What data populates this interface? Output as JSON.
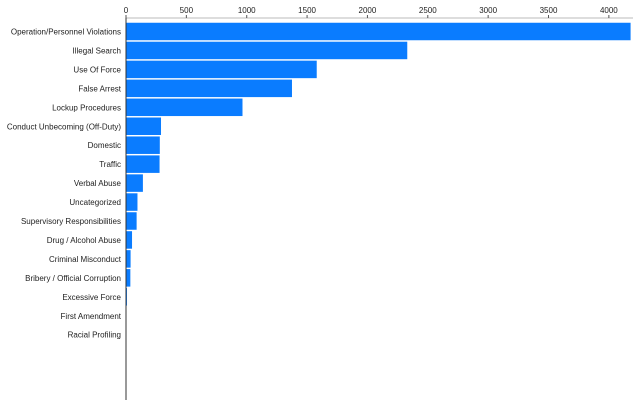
{
  "chart_data": {
    "type": "bar",
    "orientation": "horizontal",
    "title": "",
    "xlabel": "",
    "ylabel": "",
    "xlim": [
      0,
      4200
    ],
    "x_ticks": [
      0,
      500,
      1000,
      1500,
      2000,
      2500,
      3000,
      3500,
      4000
    ],
    "x_axis_position": "top",
    "grid": false,
    "legend": "none",
    "bar_color": "#0a7cff",
    "categories": [
      "Operation/Personnel Violations",
      "Illegal Search",
      "Use Of Force",
      "False Arrest",
      "Lockup Procedures",
      "Conduct Unbecoming (Off-Duty)",
      "Domestic",
      "Traffic",
      "Verbal Abuse",
      "Uncategorized",
      "Supervisory Responsibilities",
      "Drug / Alcohol Abuse",
      "Criminal Misconduct",
      "Bribery / Official Corruption",
      "Excessive Force",
      "First Amendment",
      "Racial Profiling"
    ],
    "values": [
      4180,
      2330,
      1580,
      1375,
      965,
      290,
      280,
      278,
      140,
      95,
      88,
      50,
      38,
      36,
      8,
      2,
      1
    ]
  }
}
